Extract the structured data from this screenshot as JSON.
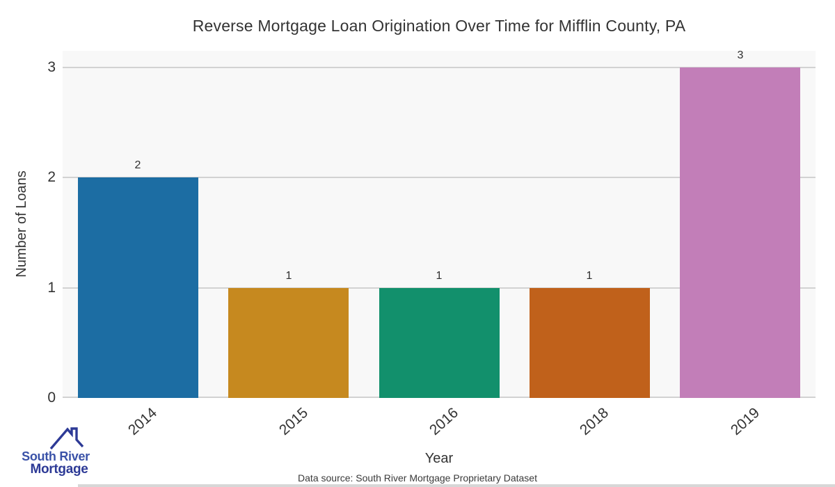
{
  "chart_data": {
    "type": "bar",
    "title": "Reverse Mortgage Loan Origination Over Time for Mifflin County, PA",
    "categories": [
      "2014",
      "2015",
      "2016",
      "2018",
      "2019"
    ],
    "values": [
      2,
      1,
      1,
      1,
      3
    ],
    "bar_labels": [
      "2",
      "1",
      "1",
      "1",
      "3"
    ],
    "bar_colors": [
      "#1c6da3",
      "#c6891f",
      "#12906c",
      "#c0611b",
      "#c27eb8"
    ],
    "xlabel": "Year",
    "ylabel": "Number of Loans",
    "yticks": [
      0,
      1,
      2,
      3
    ],
    "ylim": [
      0,
      3.15
    ],
    "grid": "horizontal",
    "legend": "none",
    "plot_bg_color": "#f8f8f8",
    "gridline_color": "#d2d2d2"
  },
  "footer": {
    "source_text": "Data source: South River Mortgage Proprietary Dataset",
    "logo": {
      "icon": "house-roof-icon",
      "line1": "South River",
      "line2": "Mortgage",
      "line1_color": "#3a52a8",
      "line2_color": "#2d3a96",
      "icon_color": "#2d3a96"
    }
  }
}
